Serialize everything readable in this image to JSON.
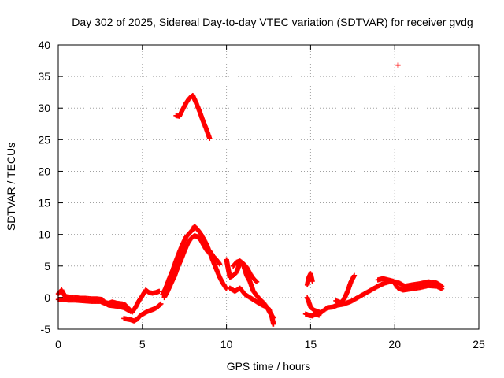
{
  "chart_data": {
    "type": "scatter",
    "title": "Day 302 of 2025, Sidereal Day-to-day VTEC variation (SDTVAR) for receiver gvdg",
    "xlabel": "GPS time / hours",
    "ylabel": "SDTVAR / TECUs",
    "xlim": [
      0,
      25
    ],
    "ylim": [
      -5,
      40
    ],
    "xticks": [
      "0",
      "5",
      "10",
      "15",
      "20",
      "25"
    ],
    "yticks": [
      "-5",
      "0",
      "5",
      "10",
      "15",
      "20",
      "25",
      "30",
      "35",
      "40"
    ],
    "grid": true,
    "marker": "+",
    "series": [
      {
        "name": "SDTVAR",
        "color": "#ff0000",
        "traces": [
          {
            "x": [
              0.0,
              0.2,
              0.4,
              0.6,
              0.8,
              1.0,
              1.3,
              1.6,
              2.0,
              2.3,
              2.6,
              2.8,
              3.0,
              3.2,
              3.5,
              3.8,
              4.0,
              4.2,
              4.4,
              4.6,
              4.8,
              5.0,
              5.2,
              5.4,
              5.6,
              5.8,
              6.0
            ],
            "y": [
              0.6,
              1.2,
              0.2,
              0.1,
              0.0,
              0.0,
              -0.1,
              -0.1,
              -0.2,
              -0.2,
              -0.3,
              -0.8,
              -0.9,
              -0.7,
              -0.9,
              -1.0,
              -1.2,
              -1.8,
              -2.3,
              -1.5,
              -0.5,
              0.3,
              1.2,
              0.8,
              0.7,
              0.8,
              1.0
            ]
          },
          {
            "x": [
              0.0,
              0.3,
              0.6,
              1.0,
              1.5,
              2.0,
              2.5,
              3.0,
              3.3,
              3.6,
              3.9,
              4.1,
              4.3
            ],
            "y": [
              -0.3,
              -0.3,
              -0.4,
              -0.4,
              -0.5,
              -0.6,
              -0.6,
              -1.2,
              -1.3,
              -1.4,
              -1.6,
              -1.9,
              -2.2
            ]
          },
          {
            "x": [
              3.9,
              4.1,
              4.3,
              4.5,
              4.7,
              4.9,
              5.1,
              5.3,
              5.5,
              5.7,
              5.9,
              6.1
            ],
            "y": [
              -3.3,
              -3.4,
              -3.5,
              -3.7,
              -3.4,
              -2.8,
              -2.5,
              -2.2,
              -2.0,
              -1.8,
              -1.5,
              -1.0
            ]
          },
          {
            "x": [
              6.2,
              6.4,
              6.6,
              6.8,
              7.0,
              7.2,
              7.4,
              7.6,
              7.8,
              8.0,
              8.1,
              8.2,
              8.4,
              8.6,
              8.8,
              9.0,
              9.2,
              9.4,
              9.6,
              9.8,
              10.0
            ],
            "y": [
              0.5,
              1.6,
              3.0,
              4.3,
              5.8,
              7.2,
              8.5,
              9.6,
              10.2,
              10.8,
              11.3,
              11.0,
              10.4,
              9.5,
              8.5,
              7.2,
              5.8,
              4.5,
              3.2,
              2.2,
              1.4
            ]
          },
          {
            "x": [
              6.3,
              6.5,
              6.7,
              6.9,
              7.1,
              7.3,
              7.5,
              7.7,
              7.9,
              8.1,
              8.3,
              8.5,
              8.7,
              8.9
            ],
            "y": [
              0.0,
              1.0,
              2.2,
              3.3,
              4.8,
              6.0,
              7.4,
              8.6,
              9.4,
              9.8,
              9.6,
              9.0,
              8.0,
              7.2
            ]
          },
          {
            "x": [
              9.0,
              9.1,
              9.2,
              9.3,
              9.4,
              9.5,
              9.6
            ],
            "y": [
              7.4,
              7.0,
              6.6,
              6.3,
              6.0,
              5.7,
              5.3
            ]
          },
          {
            "x": [
              7.0,
              7.2,
              7.4,
              7.6,
              7.8,
              8.0,
              8.2,
              8.4,
              8.6,
              8.8,
              9.0
            ],
            "y": [
              28.8,
              28.7,
              29.8,
              30.8,
              31.6,
              32.0,
              30.8,
              29.5,
              28.0,
              26.7,
              25.2
            ]
          },
          {
            "x": [
              10.0,
              10.2,
              10.4,
              10.6,
              10.8,
              11.0,
              11.2,
              11.4,
              11.6,
              11.8,
              12.0,
              12.2,
              12.4,
              12.6,
              12.8
            ],
            "y": [
              6.0,
              3.2,
              3.5,
              4.0,
              5.5,
              5.2,
              3.5,
              2.5,
              1.0,
              0.3,
              -0.3,
              -0.8,
              -1.5,
              -2.5,
              -3.2
            ]
          },
          {
            "x": [
              10.2,
              10.5,
              10.8,
              11.1,
              11.4,
              11.7,
              12.0,
              12.3,
              12.6,
              12.8
            ],
            "y": [
              1.5,
              1.0,
              1.5,
              0.5,
              0.0,
              -0.5,
              -1.0,
              -1.4,
              -2.0,
              -4.2
            ]
          },
          {
            "x": [
              10.4,
              10.6,
              10.8,
              11.0,
              11.2,
              11.4,
              11.6,
              11.8
            ],
            "y": [
              5.0,
              5.6,
              5.8,
              5.4,
              4.8,
              3.8,
              3.0,
              2.5
            ]
          },
          {
            "x": [
              14.8,
              14.9,
              15.0,
              15.1
            ],
            "y": [
              2.0,
              3.2,
              3.8,
              2.6
            ]
          },
          {
            "x": [
              14.8,
              15.0,
              15.2,
              15.4,
              15.6,
              15.8,
              16.0,
              16.3,
              16.6,
              17.0,
              17.4,
              17.8,
              18.2,
              18.6,
              19.0,
              19.4,
              19.8,
              20.2,
              20.6,
              21.0,
              21.5,
              22.0,
              22.5,
              22.8
            ],
            "y": [
              0.0,
              -1.5,
              -2.0,
              -2.2,
              -2.4,
              -2.0,
              -1.6,
              -1.5,
              -1.2,
              -1.0,
              -0.6,
              0.0,
              0.6,
              1.2,
              1.8,
              2.3,
              2.6,
              2.4,
              1.8,
              2.0,
              2.2,
              2.5,
              2.3,
              1.8
            ]
          },
          {
            "x": [
              14.7,
              14.9,
              15.1,
              15.3,
              15.5
            ],
            "y": [
              -2.6,
              -2.8,
              -2.9,
              -2.6,
              -2.8
            ]
          },
          {
            "x": [
              16.5,
              16.8,
              17.0,
              17.2,
              17.4,
              17.6
            ],
            "y": [
              -0.5,
              -0.8,
              -0.2,
              1.0,
              2.5,
              3.5
            ]
          },
          {
            "x": [
              19.0,
              19.3,
              19.6,
              19.9,
              20.2,
              20.5,
              21.0,
              21.5,
              22.0,
              22.5,
              22.8
            ],
            "y": [
              2.8,
              3.0,
              2.8,
              2.6,
              1.5,
              1.2,
              1.4,
              1.6,
              1.9,
              1.8,
              1.4
            ]
          }
        ],
        "isolated": {
          "x": [
            20.2,
            10.0
          ],
          "y": [
            36.8,
            6.0
          ]
        }
      }
    ]
  }
}
